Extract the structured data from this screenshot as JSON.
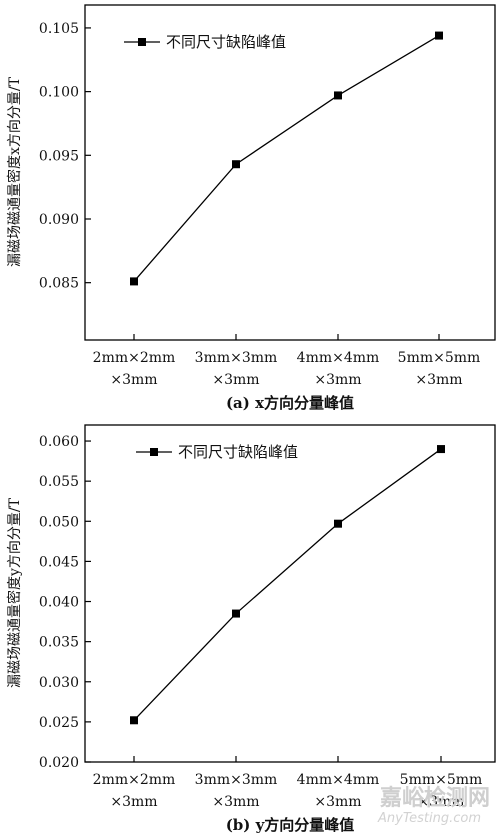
{
  "chart_data": [
    {
      "type": "line",
      "caption": "(a) x方向分量峰值",
      "ylabel": "漏磁场磁通量密度x方向分量/T",
      "categories": [
        [
          "2mm×2mm",
          "×3mm"
        ],
        [
          "3mm×3mm",
          "×3mm"
        ],
        [
          "4mm×4mm",
          "×3mm"
        ],
        [
          "5mm×5mm",
          "×3mm"
        ]
      ],
      "ylim": [
        0.0805,
        0.1068
      ],
      "yticks": [
        "0.085",
        "0.090",
        "0.095",
        "0.100",
        "0.105"
      ],
      "series": [
        {
          "name": "不同尺寸缺陷峰值",
          "values": [
            0.0851,
            0.0943,
            0.0997,
            0.1044
          ]
        }
      ],
      "legend": "top-left"
    },
    {
      "type": "line",
      "caption": "(b) y方向分量峰值",
      "ylabel": "漏磁场磁通量密度y方向分量/T",
      "categories": [
        [
          "2mm×2mm",
          "×3mm"
        ],
        [
          "3mm×3mm",
          "×3mm"
        ],
        [
          "4mm×4mm",
          "×3mm"
        ],
        [
          "5mm×5mm",
          "×3mm"
        ]
      ],
      "ylim": [
        0.02,
        0.062
      ],
      "yticks": [
        "0.020",
        "0.025",
        "0.030",
        "0.035",
        "0.040",
        "0.045",
        "0.050",
        "0.055",
        "0.060"
      ],
      "series": [
        {
          "name": "不同尺寸缺陷峰值",
          "values": [
            0.0252,
            0.0385,
            0.0497,
            0.059
          ]
        }
      ],
      "legend": "top-left"
    }
  ],
  "watermark": {
    "main": "嘉峪检测网",
    "sub": "AnyTesting.com"
  }
}
